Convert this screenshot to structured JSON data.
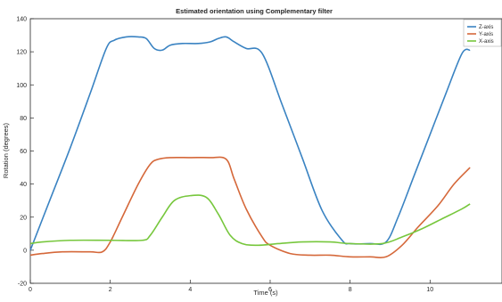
{
  "chart_data": {
    "type": "line",
    "title": "Estimated orientation using Complementary filter",
    "xlabel": "Time (s)",
    "ylabel": "Rotation (degrees)",
    "xlim": [
      0,
      11.8
    ],
    "ylim": [
      -20,
      140
    ],
    "xticks": [
      0,
      2,
      4,
      6,
      8,
      10
    ],
    "yticks": [
      -20,
      0,
      20,
      40,
      60,
      80,
      100,
      120,
      140
    ],
    "grid": false,
    "legend_position": "top-right",
    "series": [
      {
        "name": "Z-axis",
        "color": "#3a83c2",
        "x": [
          0,
          0.5,
          1.0,
          1.5,
          1.9,
          2.1,
          2.4,
          2.7,
          2.9,
          3.1,
          3.3,
          3.5,
          3.8,
          4.2,
          4.5,
          4.7,
          4.9,
          5.1,
          5.4,
          5.8,
          6.3,
          6.8,
          7.3,
          7.8,
          8.0,
          8.5,
          8.9,
          9.2,
          9.6,
          10.0,
          10.4,
          10.8,
          11.0
        ],
        "y": [
          0,
          31,
          62,
          95,
          122,
          127,
          129,
          129,
          128,
          122,
          121,
          124,
          125,
          125,
          126,
          128,
          129,
          126,
          122,
          119,
          88,
          56,
          24,
          6,
          4,
          4,
          5,
          20,
          45,
          70,
          95,
          119,
          121
        ]
      },
      {
        "name": "Y-axis",
        "color": "#d5683a",
        "x": [
          0,
          0.3,
          0.8,
          1.5,
          1.8,
          2.0,
          2.3,
          2.7,
          3.0,
          3.2,
          3.5,
          4.0,
          4.5,
          4.9,
          5.1,
          5.4,
          5.8,
          6.0,
          6.5,
          7.0,
          7.5,
          8.0,
          8.5,
          8.9,
          9.3,
          9.7,
          10.2,
          10.6,
          11.0
        ],
        "y": [
          -3,
          -2,
          -1,
          -1,
          -1,
          5,
          20,
          40,
          52,
          55,
          56,
          56,
          56,
          55,
          43,
          25,
          8,
          3,
          -2,
          -3,
          -3,
          -4,
          -4,
          -4,
          3,
          14,
          27,
          40,
          50
        ]
      },
      {
        "name": "X-axis",
        "color": "#77c73d",
        "x": [
          0,
          0.3,
          1.0,
          2.0,
          2.8,
          3.0,
          3.3,
          3.6,
          4.0,
          4.4,
          4.7,
          5.0,
          5.3,
          5.7,
          6.2,
          6.8,
          7.5,
          8.0,
          8.8,
          9.3,
          9.8,
          10.3,
          10.8,
          11.0
        ],
        "y": [
          4,
          5,
          6,
          6,
          6,
          9,
          20,
          30,
          33,
          32,
          22,
          9,
          4,
          3,
          4,
          5,
          5,
          4,
          4,
          8,
          13,
          19,
          25,
          28
        ]
      }
    ]
  },
  "legend": {
    "z_label": "Z-axis",
    "y_label": "Y-axis",
    "x_label": "X-axis"
  }
}
